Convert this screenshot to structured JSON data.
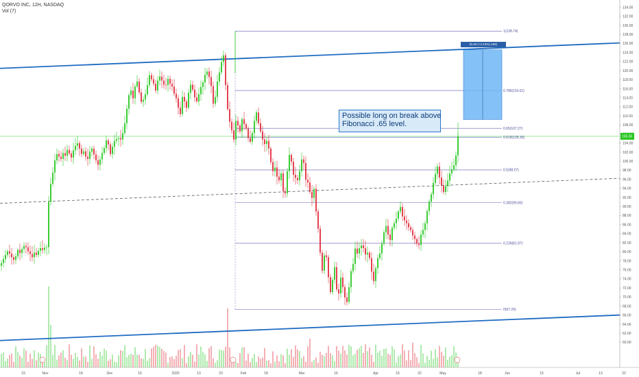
{
  "header": {
    "symbol_line": "QORVO INC, 12H, NASDAQ",
    "volume_line": "Vol (7)"
  },
  "annotation": {
    "line1": "Possible long on break above",
    "line2": "Fibonacci .65 level."
  },
  "measure_label": "(5.45 (+4.13%) 194)",
  "colors": {
    "up": "#26c61e",
    "down": "#e02c3a",
    "trendline": "#1f6bc2",
    "fib": "#5f5fb5",
    "box": "#6fb6f4",
    "price_line": "#7be07b"
  },
  "chart_data": {
    "type": "candlestick",
    "ylim": [
      59,
      135
    ],
    "y_ticks": [
      "60.00",
      "62.00",
      "64.00",
      "66.00",
      "68.00",
      "70.00",
      "72.00",
      "74.00",
      "76.00",
      "78.00",
      "80.00",
      "82.00",
      "84.00",
      "86.00",
      "88.00",
      "90.00",
      "92.00",
      "94.00",
      "96.00",
      "98.00",
      "100.00",
      "102.00",
      "104.00",
      "106.00",
      "108.00",
      "110.00",
      "112.00",
      "114.00",
      "116.00",
      "118.00",
      "120.00",
      "122.00",
      "124.00",
      "126.00",
      "128.00",
      "130.00",
      "132.00",
      "134.00"
    ],
    "x_ticks": [
      "23",
      "Nov",
      "18",
      "Dec",
      "16",
      "2020",
      "13",
      "23",
      "Feb",
      "18",
      "Mar",
      "16",
      "Apr",
      "15",
      "22",
      "May",
      "18",
      "Jun",
      "15",
      "Jul",
      "13",
      "22"
    ],
    "fib_levels": [
      {
        "label": "1(128.74)",
        "value": 128.74
      },
      {
        "label": "0.786(115.61)",
        "value": 115.61
      },
      {
        "label": "0.65(107.27)",
        "value": 107.27
      },
      {
        "label": "0.618(105.30)",
        "value": 105.3
      },
      {
        "label": "0.5(98.07)",
        "value": 98.07
      },
      {
        "label": "0.382(90.83)",
        "value": 90.83
      },
      {
        "label": "0.236(81.87)",
        "value": 81.87
      },
      {
        "label": "0(67.29)",
        "value": 67.29
      }
    ],
    "trendlines": [
      {
        "name": "upper",
        "style": "solid",
        "from": [
          0,
          120.5
        ],
        "to": [
          932,
          126.3
        ]
      },
      {
        "name": "middle",
        "style": "dashed",
        "from": [
          0,
          90.7
        ],
        "to": [
          932,
          96.4
        ]
      },
      {
        "name": "lower",
        "style": "solid",
        "from": [
          0,
          60.4
        ],
        "to": [
          932,
          66.2
        ]
      }
    ],
    "target_box": {
      "top": 124.6,
      "bottom": 109.2
    },
    "last_price": 105.5,
    "candles_close": [
      77.5,
      78.4,
      79.3,
      80.1,
      79.6,
      78.8,
      78.2,
      79.0,
      80.4,
      79.7,
      80.6,
      81.3,
      81.0,
      80.1,
      79.5,
      78.8,
      79.8,
      79.3,
      80.2,
      80.8,
      80.4,
      80.9,
      81.0,
      91.0,
      95.0,
      97.5,
      100.2,
      101.6,
      101.0,
      100.5,
      101.8,
      101.2,
      102.5,
      101.7,
      100.8,
      102.4,
      103.4,
      104.0,
      102.8,
      101.6,
      102.2,
      101.0,
      100.5,
      102.1,
      102.8,
      101.5,
      100.2,
      99.2,
      100.4,
      101.8,
      102.9,
      104.6,
      103.7,
      101.6,
      103.2,
      104.5,
      104.9,
      105.1,
      104.8,
      106.2,
      108.4,
      111.6,
      114.6,
      115.6,
      113.9,
      116.5,
      117.6,
      115.2,
      113.1,
      113.6,
      114.8,
      116.8,
      119.0,
      118.1,
      117.1,
      115.6,
      117.8,
      118.7,
      117.8,
      116.9,
      116.8,
      118.2,
      117.1,
      116.5,
      114.9,
      113.9,
      111.8,
      110.4,
      114.2,
      113.2,
      111.8,
      115.1,
      116.9,
      115.8,
      114.1,
      113.2,
      114.8,
      116.4,
      117.4,
      119.1,
      119.8,
      118.6,
      116.6,
      112.7,
      114.2,
      117.6,
      119.6,
      121.9,
      123.4,
      116.8,
      111.5,
      108.7,
      106.8,
      104.8,
      108.9,
      107.9,
      106.6,
      109.3,
      108.2,
      107.2,
      105.1,
      104.3,
      106.2,
      108.9,
      110.8,
      108.4,
      106.6,
      104.8,
      103.8,
      104.5,
      102.8,
      99.8,
      97.8,
      98.6,
      96.6,
      95.8,
      97.3,
      93.4,
      92.9,
      97.8,
      101.4,
      99.9,
      97.0,
      96.3,
      95.8,
      97.8,
      100.4,
      99.6,
      95.9,
      95.3,
      93.2,
      91.9,
      93.9,
      88.9,
      85.1,
      79.8,
      75.8,
      79.2,
      78.8,
      74.4,
      71.1,
      73.8,
      76.6,
      71.7,
      70.8,
      74.3,
      72.2,
      69.9,
      68.9,
      72.2,
      75.7,
      77.3,
      80.7,
      79.6,
      80.8,
      81.4,
      80.8,
      79.4,
      79.8,
      78.6,
      75.6,
      73.5,
      76.4,
      78.6,
      79.6,
      81.8,
      84.3,
      85.7,
      83.8,
      82.6,
      85.3,
      86.3,
      87.3,
      88.9,
      89.9,
      87.8,
      86.9,
      86.3,
      85.4,
      84.8,
      83.6,
      82.8,
      81.8,
      81.5,
      83.8,
      84.8,
      86.3,
      89.0,
      91.1,
      92.7,
      95.2,
      97.2,
      98.8,
      96.4,
      94.6,
      93.2,
      94.5,
      95.7,
      97.3,
      98.2,
      99.1,
      101.3,
      105.5
    ]
  }
}
